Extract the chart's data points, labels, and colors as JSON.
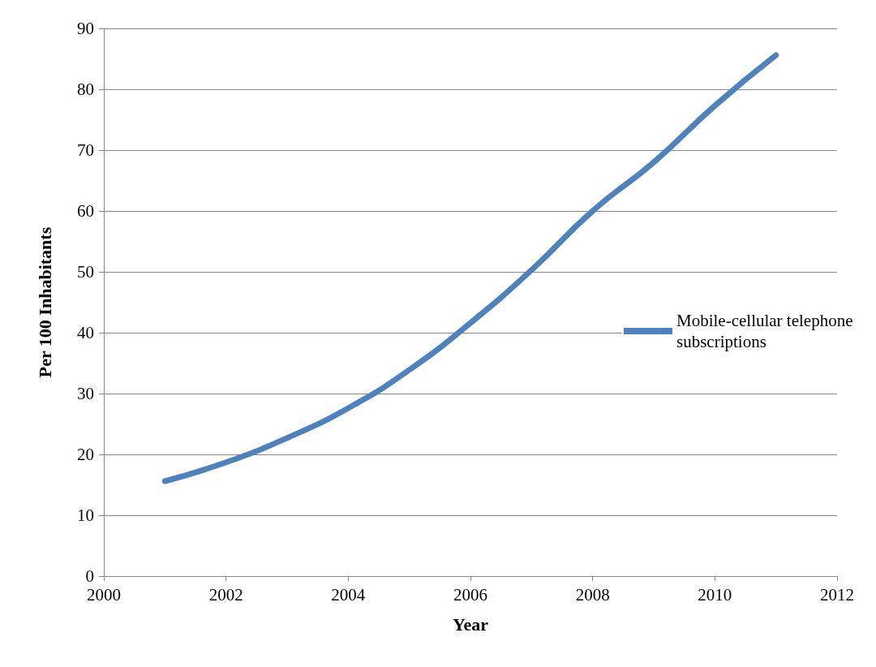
{
  "chart_data": {
    "type": "line",
    "xlabel": "Year",
    "ylabel": "Per 100 Inhabitants",
    "x": [
      2001,
      2002,
      2003,
      2004,
      2005,
      2006,
      2007,
      2008,
      2009,
      2010,
      2011
    ],
    "series": [
      {
        "name": "Mobile-cellular telephone subscriptions",
        "color": "#4f81bd",
        "values": [
          15.6,
          18.7,
          22.7,
          27.6,
          33.9,
          41.6,
          50.3,
          60.0,
          68.0,
          77.3,
          85.6
        ]
      }
    ],
    "xlim": [
      2000,
      2012
    ],
    "xticks": [
      2000,
      2002,
      2004,
      2006,
      2008,
      2010,
      2012
    ],
    "ylim": [
      0,
      90
    ],
    "yticks": [
      0,
      10,
      20,
      30,
      40,
      50,
      60,
      70,
      80,
      90
    ],
    "grid": "y",
    "legend": "right",
    "marker": "none",
    "line_style": "solid"
  }
}
